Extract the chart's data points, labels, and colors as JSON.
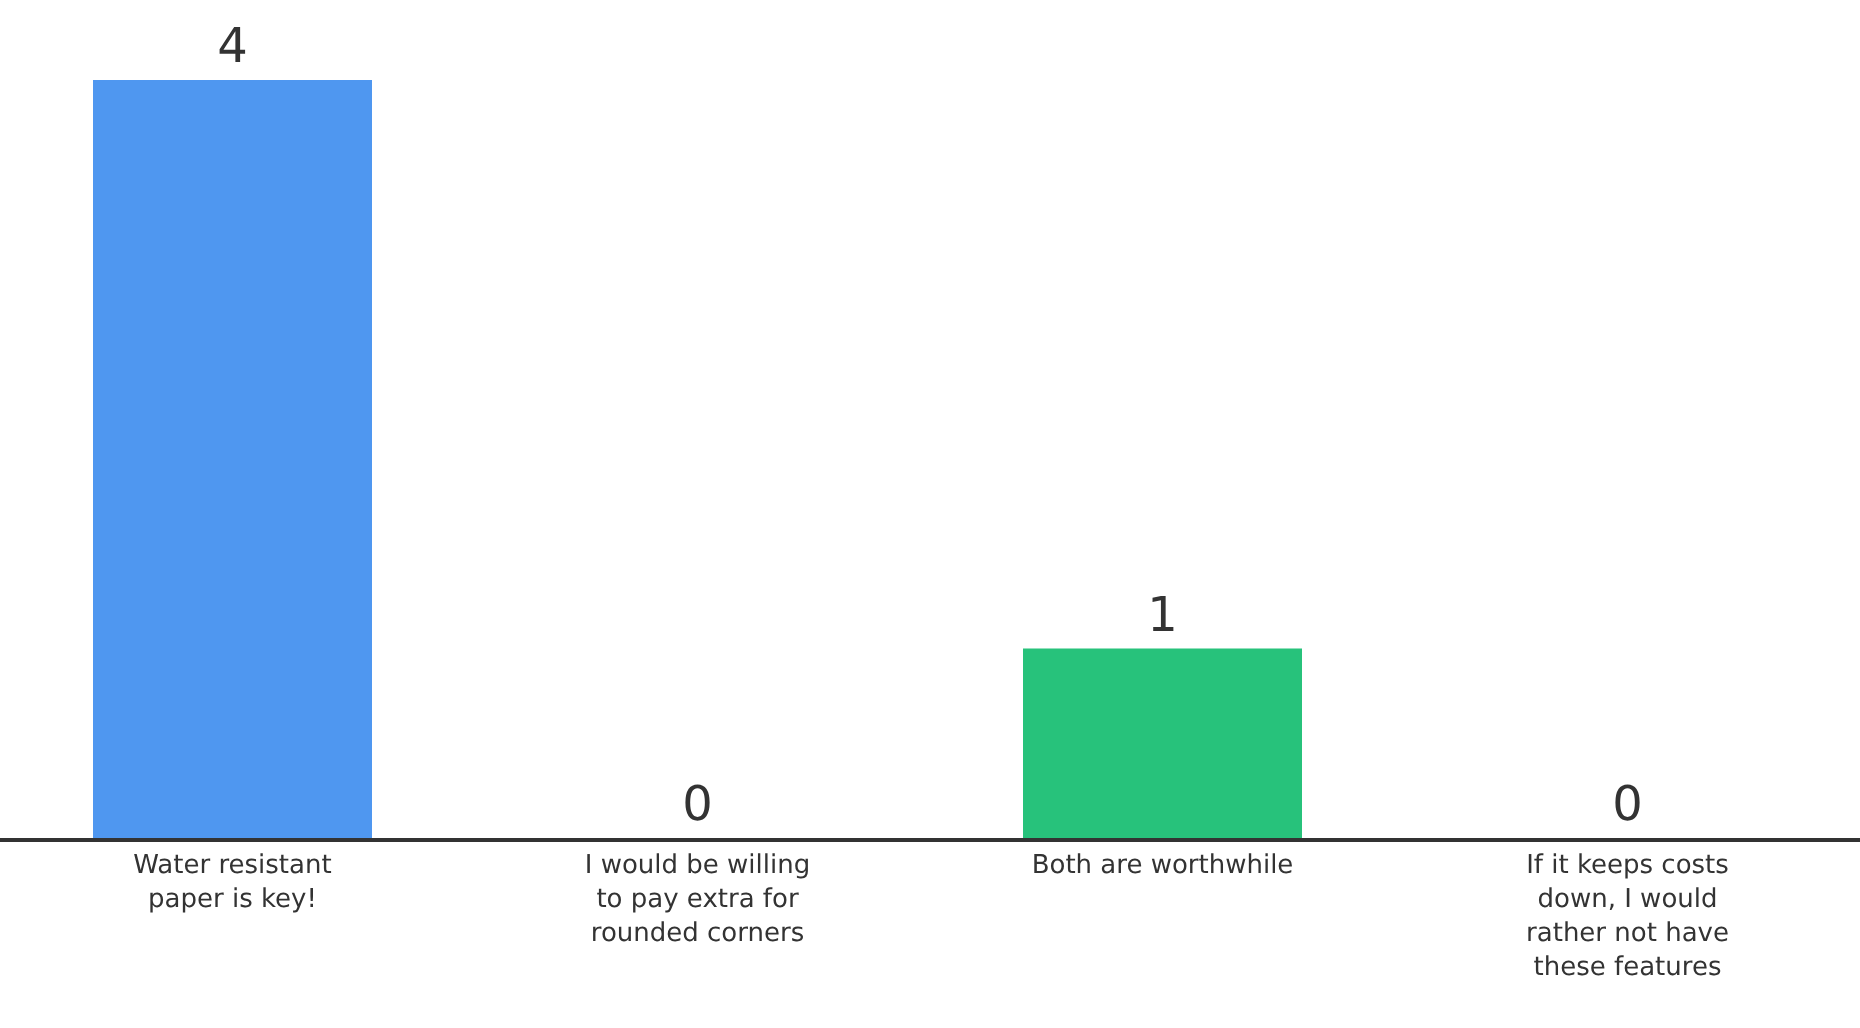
{
  "chart_data": {
    "type": "bar",
    "categories": [
      "Water resistant paper is key!",
      "I would be willing to pay extra for rounded corners",
      "Both are worthwhile",
      "If it keeps costs down, I would rather not have these features"
    ],
    "values": [
      4,
      0,
      1,
      0
    ],
    "colors": [
      "#4f97f0",
      null,
      "#27c27b",
      null
    ],
    "data_labels": true
  }
}
